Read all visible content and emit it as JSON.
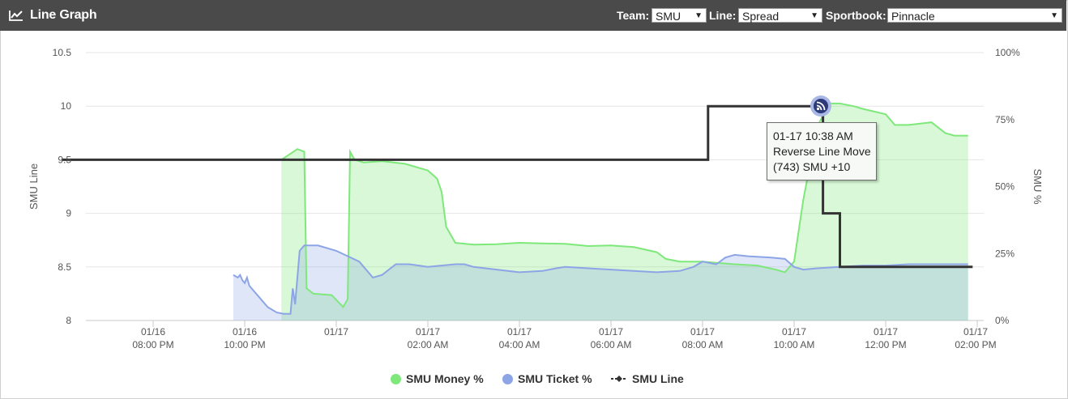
{
  "header": {
    "title": "Line Graph",
    "team_label": "Team:",
    "team_value": "SMU",
    "line_label": "Line:",
    "line_value": "Spread",
    "sportsbook_label": "Sportbook:",
    "sportsbook_value": "Pinnacle",
    "icons": {
      "title": "line-chart-icon",
      "dropdown": "triangle-down-icon"
    }
  },
  "tooltip": {
    "line1": "01-17 10:38 AM",
    "line2": "Reverse Line Move",
    "line3": "(743) SMU +10",
    "marker_icon": "rss-icon"
  },
  "chart_data": {
    "type": "line",
    "xlabel": "",
    "ylabel": "SMU Line",
    "y2label": "SMU %",
    "ylim": [
      8,
      10.5
    ],
    "y2lim": [
      0,
      100
    ],
    "yticks": [
      "8",
      "8.5",
      "9",
      "9.5",
      "10",
      "10.5"
    ],
    "y2ticks": [
      "0%",
      "25%",
      "50%",
      "75%",
      "100%"
    ],
    "xticks": [
      {
        "t": 20,
        "date": "01/16",
        "time": "08:00 PM"
      },
      {
        "t": 22,
        "date": "01/16",
        "time": "10:00 PM"
      },
      {
        "t": 26,
        "date": "01/17",
        "time": "02:00 AM"
      },
      {
        "t": 28,
        "date": "01/17",
        "time": "04:00 AM"
      },
      {
        "t": 30,
        "date": "01/17",
        "time": "06:00 AM"
      },
      {
        "t": 32,
        "date": "01/17",
        "time": "08:00 AM"
      },
      {
        "t": 34,
        "date": "01/17",
        "time": "10:00 AM"
      },
      {
        "t": 36,
        "date": "01/17",
        "time": "12:00 PM"
      },
      {
        "t": 38,
        "date": "01/17",
        "time": "02:00 PM"
      }
    ],
    "extra_xticks": [
      {
        "t": 24,
        "date": "01/17",
        "time": ""
      }
    ],
    "legend_position": "bottom",
    "grid": true,
    "colors": {
      "money": "#7ee87a",
      "ticket": "#8da4e6",
      "line": "#333333"
    },
    "series": [
      {
        "name": "SMU Money %",
        "axis": "right",
        "points": [
          [
            22.8,
            60
          ],
          [
            23.15,
            64
          ],
          [
            23.3,
            63
          ],
          [
            23.35,
            12
          ],
          [
            23.5,
            10
          ],
          [
            23.9,
            9.5
          ],
          [
            24.15,
            5
          ],
          [
            24.25,
            8
          ],
          [
            24.3,
            63
          ],
          [
            24.4,
            60
          ],
          [
            24.6,
            59
          ],
          [
            25.0,
            59.5
          ],
          [
            25.5,
            58.5
          ],
          [
            26.0,
            56
          ],
          [
            26.2,
            53
          ],
          [
            26.3,
            48
          ],
          [
            26.4,
            35
          ],
          [
            26.6,
            29
          ],
          [
            27.0,
            28.3
          ],
          [
            27.5,
            28.5
          ],
          [
            28.0,
            29
          ],
          [
            28.5,
            28.8
          ],
          [
            29.0,
            28.6
          ],
          [
            29.5,
            27.8
          ],
          [
            30.0,
            28
          ],
          [
            30.5,
            27.4
          ],
          [
            31.0,
            25.5
          ],
          [
            31.2,
            23
          ],
          [
            31.5,
            22
          ],
          [
            32.0,
            22
          ],
          [
            32.3,
            21.5
          ],
          [
            32.7,
            21
          ],
          [
            33.2,
            20.5
          ],
          [
            33.6,
            19
          ],
          [
            33.8,
            18
          ],
          [
            34.0,
            22
          ],
          [
            34.2,
            45
          ],
          [
            34.5,
            72
          ],
          [
            34.75,
            81
          ],
          [
            35.0,
            81
          ],
          [
            35.3,
            80
          ],
          [
            35.5,
            79
          ],
          [
            36.0,
            77
          ],
          [
            36.2,
            73
          ],
          [
            36.5,
            73
          ],
          [
            37.0,
            74
          ],
          [
            37.3,
            70
          ],
          [
            37.5,
            69
          ],
          [
            37.8,
            69
          ]
        ]
      },
      {
        "name": "SMU Ticket %",
        "axis": "right",
        "points": [
          [
            21.75,
            17
          ],
          [
            21.85,
            16
          ],
          [
            21.9,
            17
          ],
          [
            21.95,
            15
          ],
          [
            22.0,
            14
          ],
          [
            22.05,
            16
          ],
          [
            22.1,
            13
          ],
          [
            22.2,
            11
          ],
          [
            22.3,
            9
          ],
          [
            22.5,
            5
          ],
          [
            22.7,
            3
          ],
          [
            22.85,
            2.5
          ],
          [
            23.0,
            2.5
          ],
          [
            23.05,
            12
          ],
          [
            23.1,
            6
          ],
          [
            23.2,
            26
          ],
          [
            23.3,
            28
          ],
          [
            23.6,
            28
          ],
          [
            24.0,
            26
          ],
          [
            24.5,
            22
          ],
          [
            24.8,
            16
          ],
          [
            25.0,
            17
          ],
          [
            25.3,
            21
          ],
          [
            25.6,
            21
          ],
          [
            26.0,
            20
          ],
          [
            26.3,
            20.5
          ],
          [
            26.6,
            21
          ],
          [
            26.8,
            21
          ],
          [
            27.0,
            20
          ],
          [
            27.5,
            19
          ],
          [
            28.0,
            18
          ],
          [
            28.5,
            18.5
          ],
          [
            28.8,
            19.5
          ],
          [
            29.0,
            20
          ],
          [
            29.5,
            19.5
          ],
          [
            30.0,
            19
          ],
          [
            30.5,
            18.5
          ],
          [
            31.0,
            18
          ],
          [
            31.5,
            18.5
          ],
          [
            31.8,
            20
          ],
          [
            32.0,
            22
          ],
          [
            32.3,
            21
          ],
          [
            32.5,
            23.5
          ],
          [
            32.7,
            24.5
          ],
          [
            33.0,
            24
          ],
          [
            33.5,
            23.5
          ],
          [
            33.8,
            23
          ],
          [
            34.0,
            20
          ],
          [
            34.2,
            19
          ],
          [
            34.5,
            19.5
          ],
          [
            35.0,
            20
          ],
          [
            35.5,
            20.5
          ],
          [
            36.0,
            20.5
          ],
          [
            36.5,
            21
          ],
          [
            37.0,
            21
          ],
          [
            37.5,
            21
          ],
          [
            37.8,
            21
          ]
        ]
      },
      {
        "name": "SMU Line",
        "axis": "left",
        "step": true,
        "points": [
          [
            18.0,
            9.5
          ],
          [
            32.12,
            9.5
          ],
          [
            32.12,
            10.0
          ],
          [
            34.63,
            10.0
          ],
          [
            34.63,
            9.0
          ],
          [
            35.0,
            9.0
          ],
          [
            35.0,
            8.5
          ],
          [
            37.9,
            8.5
          ]
        ]
      }
    ]
  }
}
